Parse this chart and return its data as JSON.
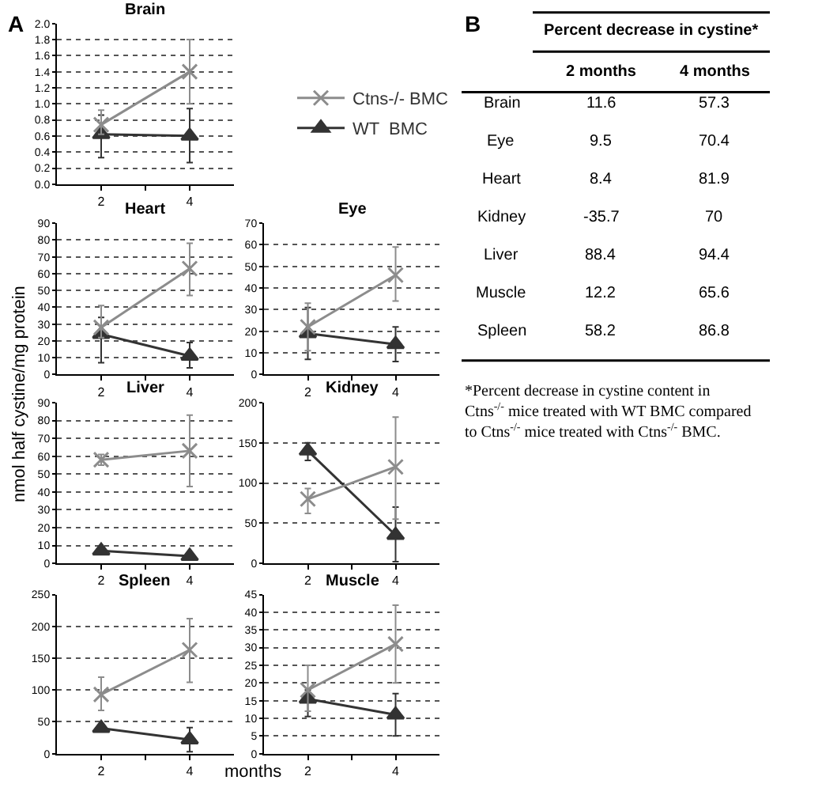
{
  "chart_data": [
    {
      "type": "line",
      "title": "Brain",
      "categories": [
        "2",
        "4"
      ],
      "ylim": [
        0,
        2
      ],
      "yticks": [
        {
          "value": 0,
          "label": "0.0"
        },
        0.2,
        0.4,
        0.6,
        0.8,
        {
          "value": 1,
          "label": "1.0"
        },
        1.2,
        1.4,
        1.6,
        1.8,
        {
          "value": 2,
          "label": "2.0"
        }
      ],
      "grid": "y",
      "legend": "right",
      "annotations": [
        "A"
      ],
      "series": [
        {
          "name": "Ctns-/- BMC",
          "color": "#8c8c8c",
          "marker": "cross",
          "values": [
            0.74,
            1.4
          ],
          "errors": [
            [
              0.62,
              0.92
            ],
            [
              1.0,
              1.8
            ]
          ]
        },
        {
          "name": "WT  BMC",
          "color": "#333333",
          "marker": "triangle",
          "values": [
            0.62,
            0.6
          ],
          "errors": [
            [
              0.33,
              0.86
            ],
            [
              0.27,
              0.94
            ]
          ]
        }
      ]
    },
    {
      "type": "line",
      "title": "Heart",
      "categories": [
        "2",
        "4"
      ],
      "ylim": [
        0,
        90
      ],
      "yticks": [
        0,
        10,
        20,
        30,
        40,
        50,
        60,
        70,
        80,
        90
      ],
      "grid": "y",
      "series": [
        {
          "color": "#8c8c8c",
          "marker": "cross",
          "values": [
            28,
            63
          ],
          "errors": [
            [
              22,
              41
            ],
            [
              47,
              78
            ]
          ]
        },
        {
          "color": "#333333",
          "marker": "triangle",
          "values": [
            24,
            11
          ],
          "errors": [
            [
              7,
              34
            ],
            [
              4,
              19
            ]
          ]
        }
      ]
    },
    {
      "type": "line",
      "title": "Eye",
      "categories": [
        "2",
        "4"
      ],
      "ylim": [
        0,
        70
      ],
      "yticks": [
        0,
        10,
        20,
        30,
        40,
        50,
        60,
        70
      ],
      "grid": "y",
      "series": [
        {
          "color": "#8c8c8c",
          "marker": "cross",
          "values": [
            22,
            46
          ],
          "errors": [
            [
              11,
              33
            ],
            [
              34,
              59
            ]
          ]
        },
        {
          "color": "#333333",
          "marker": "triangle",
          "values": [
            19,
            14
          ],
          "errors": [
            [
              7,
              31
            ],
            [
              6,
              22
            ]
          ]
        }
      ]
    },
    {
      "type": "line",
      "title": "Liver",
      "categories": [
        "2",
        "4"
      ],
      "ylim": [
        0,
        90
      ],
      "yticks": [
        0,
        10,
        20,
        30,
        40,
        50,
        60,
        70,
        80,
        90
      ],
      "grid": "y",
      "ylabel": "nmol half cystine/mg protein",
      "series": [
        {
          "color": "#8c8c8c",
          "marker": "cross",
          "values": [
            58,
            63
          ],
          "errors": [
            [
              55,
              61
            ],
            [
              43,
              83
            ]
          ]
        },
        {
          "color": "#333333",
          "marker": "triangle",
          "values": [
            7,
            4
          ],
          "errors": [
            [
              5,
              9
            ],
            [
              2,
              6
            ]
          ]
        }
      ]
    },
    {
      "type": "line",
      "title": "Kidney",
      "categories": [
        "2",
        "4"
      ],
      "ylim": [
        0,
        200
      ],
      "yticks": [
        0,
        50,
        100,
        150,
        200
      ],
      "grid": "y",
      "series": [
        {
          "color": "#8c8c8c",
          "marker": "cross",
          "values": [
            80,
            120
          ],
          "errors": [
            [
              62,
              93
            ],
            [
              55,
              182
            ]
          ]
        },
        {
          "color": "#333333",
          "marker": "triangle",
          "values": [
            140,
            35
          ],
          "errors": [
            [
              128,
              150
            ],
            [
              2,
              70
            ]
          ]
        }
      ]
    },
    {
      "type": "line",
      "title": "Spleen",
      "categories": [
        "2",
        "4"
      ],
      "ylim": [
        0,
        250
      ],
      "yticks": [
        0,
        50,
        100,
        150,
        200,
        250
      ],
      "grid": "y",
      "xlabel": "months",
      "series": [
        {
          "color": "#8c8c8c",
          "marker": "cross",
          "values": [
            93,
            163
          ],
          "errors": [
            [
              68,
              120
            ],
            [
              112,
              212
            ]
          ]
        },
        {
          "color": "#333333",
          "marker": "triangle",
          "values": [
            40,
            22
          ],
          "errors": [
            [
              35,
              45
            ],
            [
              3,
              41
            ]
          ]
        }
      ]
    },
    {
      "type": "line",
      "title": "Muscle",
      "categories": [
        "2",
        "4"
      ],
      "ylim": [
        0,
        45
      ],
      "yticks": [
        0,
        5,
        10,
        15,
        20,
        25,
        30,
        35,
        40,
        45
      ],
      "grid": "y",
      "series": [
        {
          "color": "#8c8c8c",
          "marker": "cross",
          "values": [
            18,
            31
          ],
          "errors": [
            [
              12,
              25
            ],
            [
              20,
              42
            ]
          ]
        },
        {
          "color": "#333333",
          "marker": "triangle",
          "values": [
            15.5,
            11
          ],
          "errors": [
            [
              10.5,
              18
            ],
            [
              5,
              17
            ]
          ]
        }
      ]
    },
    {
      "type": "other",
      "title": "Percent decrease in cystine*",
      "data_labels": true,
      "categories": [
        "Brain",
        "Eye",
        "Heart",
        "Kidney",
        "Liver",
        "Muscle",
        "Spleen"
      ],
      "series": [
        {
          "name": "2 months",
          "values": [
            11.6,
            9.5,
            8.4,
            -35.7,
            88.4,
            12.2,
            58.2
          ]
        },
        {
          "name": "4 months",
          "values": [
            57.3,
            70.4,
            81.9,
            70,
            94.4,
            65.6,
            86.8
          ]
        }
      ],
      "annotations": [
        "B",
        "*Percent decrease in cystine content in Ctns$^{-/-}$ mice treated with WT BMC compared to Ctns$^{-/-}$ mice treated with Ctns$^{-/-}$ BMC."
      ]
    }
  ]
}
